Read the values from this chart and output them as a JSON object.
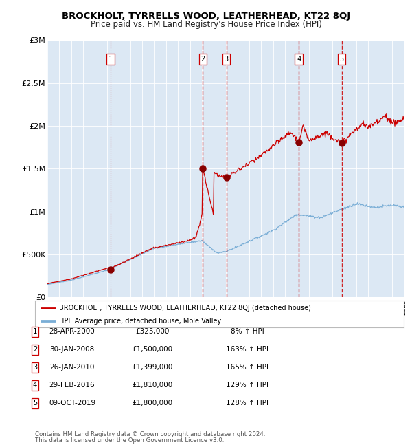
{
  "title": "BROCKHOLT, TYRRELLS WOOD, LEATHERHEAD, KT22 8QJ",
  "subtitle": "Price paid vs. HM Land Registry's House Price Index (HPI)",
  "plot_bg_color": "#dce8f4",
  "red_line_color": "#cc0000",
  "blue_line_color": "#7aaed6",
  "sale_marker_color": "#880000",
  "dashed_color": "#cc0000",
  "grid_color": "#ffffff",
  "legend_line1": "BROCKHOLT, TYRRELLS WOOD, LEATHERHEAD, KT22 8QJ (detached house)",
  "legend_line2": "HPI: Average price, detached house, Mole Valley",
  "footer1": "Contains HM Land Registry data © Crown copyright and database right 2024.",
  "footer2": "This data is licensed under the Open Government Licence v3.0.",
  "table": [
    [
      "1",
      "28-APR-2000",
      "£325,000",
      "8% ↑ HPI"
    ],
    [
      "2",
      "30-JAN-2008",
      "£1,500,000",
      "163% ↑ HPI"
    ],
    [
      "3",
      "26-JAN-2010",
      "£1,399,000",
      "165% ↑ HPI"
    ],
    [
      "4",
      "29-FEB-2016",
      "£1,810,000",
      "129% ↑ HPI"
    ],
    [
      "5",
      "09-OCT-2019",
      "£1,800,000",
      "128% ↑ HPI"
    ]
  ],
  "sale_points": [
    {
      "num": 1,
      "year": 2000.32,
      "price": 325000
    },
    {
      "num": 2,
      "year": 2008.08,
      "price": 1500000
    },
    {
      "num": 3,
      "year": 2010.07,
      "price": 1399000
    },
    {
      "num": 4,
      "year": 2016.16,
      "price": 1810000
    },
    {
      "num": 5,
      "year": 2019.77,
      "price": 1800000
    }
  ],
  "xmin": 1995,
  "xmax": 2025,
  "ymin": 0,
  "ymax": 3000000,
  "yticks": [
    0,
    500000,
    1000000,
    1500000,
    2000000,
    2500000,
    3000000
  ],
  "ytick_labels": [
    "£0",
    "£500K",
    "£1M",
    "£1.5M",
    "£2M",
    "£2.5M",
    "£3M"
  ]
}
